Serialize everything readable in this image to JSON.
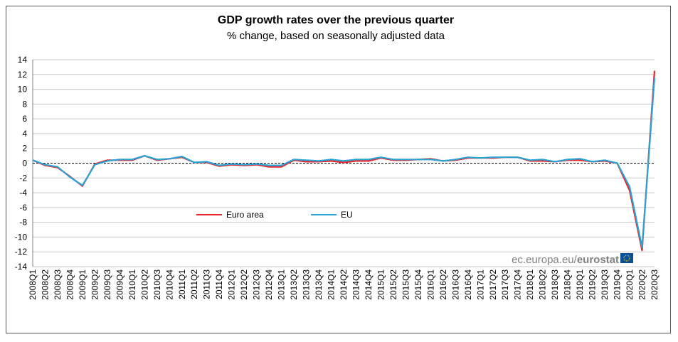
{
  "chart_data": {
    "type": "line",
    "title": "GDP growth rates over the previous quarter",
    "subtitle": "% change, based on seasonally adjusted data",
    "xlabel": "",
    "ylabel": "",
    "ylim": [
      -14,
      14
    ],
    "yticks": [
      14,
      12,
      10,
      8,
      6,
      4,
      2,
      0,
      -2,
      -4,
      -6,
      -8,
      -10,
      -12,
      -14
    ],
    "grid": true,
    "legend_position": "lower-left inside plot",
    "categories": [
      "2008Q1",
      "2008Q2",
      "2008Q3",
      "2008Q4",
      "2009Q1",
      "2009Q2",
      "2009Q3",
      "2009Q4",
      "2010Q1",
      "2010Q2",
      "2010Q3",
      "2010Q4",
      "2011Q1",
      "2011Q2",
      "2011Q3",
      "2011Q4",
      "2012Q1",
      "2012Q2",
      "2012Q3",
      "2012Q4",
      "2013Q1",
      "2013Q2",
      "2013Q3",
      "2013Q4",
      "2014Q1",
      "2014Q2",
      "2014Q3",
      "2014Q4",
      "2015Q1",
      "2015Q2",
      "2015Q3",
      "2015Q4",
      "2016Q1",
      "2016Q2",
      "2016Q3",
      "2016Q4",
      "2017Q1",
      "2017Q2",
      "2017Q3",
      "2017Q4",
      "2018Q1",
      "2018Q2",
      "2018Q3",
      "2018Q4",
      "2019Q1",
      "2019Q2",
      "2019Q3",
      "2019Q4",
      "2020Q1",
      "2020Q2",
      "2020Q3"
    ],
    "series": [
      {
        "name": "Euro area",
        "color": "#e8262b",
        "values": [
          0.4,
          -0.3,
          -0.6,
          -1.8,
          -3.1,
          -0.1,
          0.4,
          0.4,
          0.4,
          1.0,
          0.4,
          0.6,
          0.8,
          0.1,
          0.1,
          -0.4,
          -0.2,
          -0.3,
          -0.2,
          -0.5,
          -0.5,
          0.4,
          0.2,
          0.2,
          0.3,
          0.1,
          0.3,
          0.3,
          0.7,
          0.4,
          0.4,
          0.5,
          0.6,
          0.3,
          0.4,
          0.7,
          0.7,
          0.7,
          0.8,
          0.8,
          0.3,
          0.3,
          0.2,
          0.4,
          0.4,
          0.2,
          0.3,
          0.0,
          -3.7,
          -11.8,
          12.5
        ]
      },
      {
        "name": "EU",
        "color": "#2aa3d4",
        "values": [
          0.4,
          -0.2,
          -0.5,
          -1.9,
          -3.0,
          -0.2,
          0.3,
          0.5,
          0.5,
          1.0,
          0.5,
          0.6,
          0.9,
          0.1,
          0.2,
          -0.3,
          -0.1,
          -0.2,
          -0.1,
          -0.3,
          -0.3,
          0.5,
          0.4,
          0.3,
          0.5,
          0.3,
          0.5,
          0.5,
          0.8,
          0.5,
          0.5,
          0.5,
          0.5,
          0.3,
          0.5,
          0.8,
          0.7,
          0.8,
          0.8,
          0.8,
          0.4,
          0.5,
          0.2,
          0.5,
          0.6,
          0.2,
          0.4,
          0.0,
          -3.2,
          -11.4,
          11.6
        ]
      }
    ]
  },
  "source": {
    "prefix": "ec.europa.eu/",
    "name": "eurostat"
  },
  "colors": {
    "grid": "#c8c8c8",
    "zero_line": "#000000",
    "logo_blue": "#0a4f9c"
  }
}
